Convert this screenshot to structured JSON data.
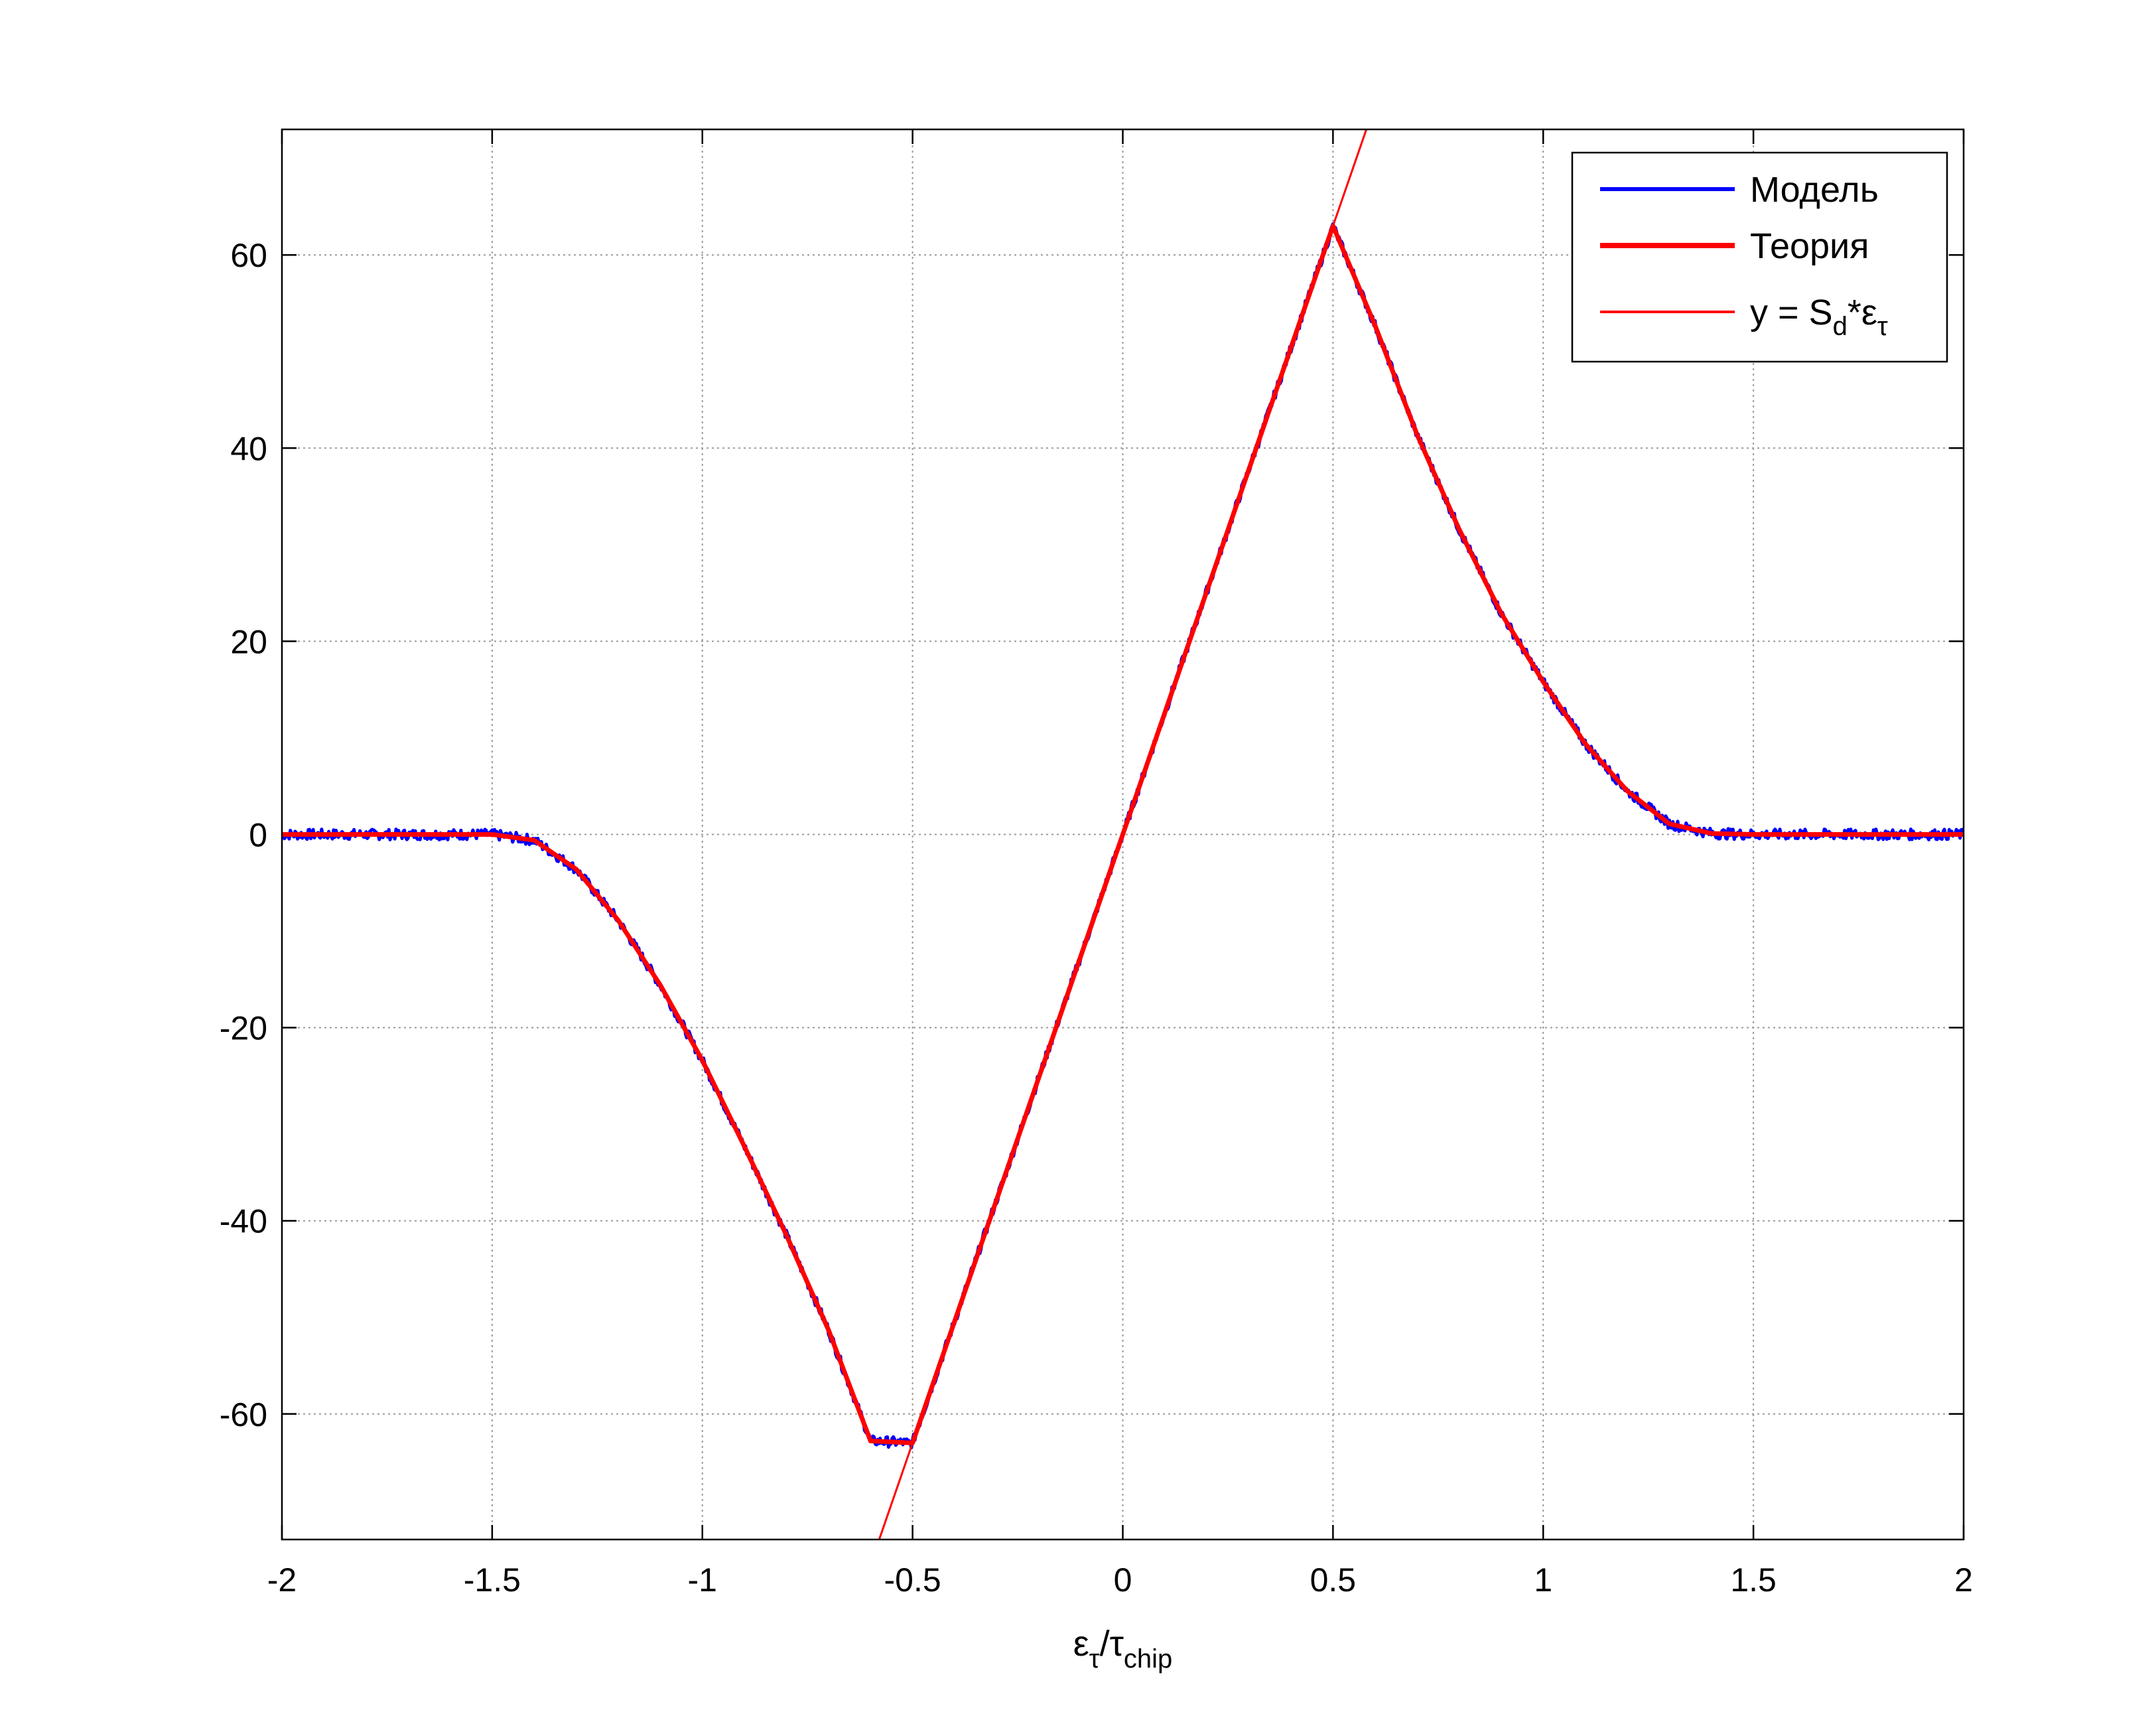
{
  "chart_data": {
    "type": "line",
    "title": "",
    "xlabel": {
      "base": "ε",
      "base_sub": "τ",
      "mid": "/τ",
      "mid_sub": "chip"
    },
    "ylabel": "",
    "xlim": [
      -2,
      2
    ],
    "ylim": [
      -73,
      73
    ],
    "grid": true,
    "x_ticks": [
      -2,
      -1.5,
      -1,
      -0.5,
      0,
      0.5,
      1,
      1.5,
      2
    ],
    "x_tick_labels": [
      "-2",
      "-1.5",
      "-1",
      "-0.5",
      "0",
      "0.5",
      "1",
      "1.5",
      "2"
    ],
    "y_ticks": [
      -60,
      -40,
      -20,
      0,
      20,
      40,
      60
    ],
    "y_tick_labels": [
      "-60",
      "-40",
      "-20",
      "0",
      "20",
      "40",
      "60"
    ],
    "legend_position": "top-right",
    "series": [
      {
        "name": "Модель",
        "color": "#0000ff",
        "style": "noisy",
        "x": [
          -2,
          -1.5,
          -1.4,
          -1.3,
          -1.2,
          -1.1,
          -1.0,
          -0.9,
          -0.8,
          -0.7,
          -0.6,
          -0.5,
          -0.25,
          0,
          0.25,
          0.5,
          0.6,
          0.7,
          0.8,
          0.9,
          1.0,
          1.1,
          1.2,
          1.3,
          1.4,
          1.5,
          2
        ],
        "y": [
          0,
          0,
          -0.6,
          -3.6,
          -8.9,
          -15.6,
          -23.4,
          -32.3,
          -41.5,
          -51.3,
          -62.8,
          -63,
          -31.5,
          0,
          31.5,
          63,
          52.7,
          41.4,
          31.6,
          22.9,
          15.8,
          9.4,
          4.5,
          1.1,
          0.1,
          0,
          0
        ]
      },
      {
        "name": "Теория",
        "color": "#ff0000",
        "style": "thick",
        "x": [
          -2,
          -1.5,
          -1.4,
          -1.3,
          -1.2,
          -1.1,
          -1.0,
          -0.9,
          -0.8,
          -0.7,
          -0.6,
          -0.5,
          -0.25,
          0,
          0.25,
          0.5,
          0.6,
          0.7,
          0.8,
          0.9,
          1.0,
          1.1,
          1.2,
          1.3,
          1.4,
          1.5,
          2
        ],
        "y": [
          0,
          0,
          -0.6,
          -3.6,
          -8.9,
          -15.6,
          -23.4,
          -32.3,
          -41.5,
          -51.3,
          -62.8,
          -63,
          -31.5,
          0,
          31.5,
          63,
          52.7,
          41.4,
          31.6,
          22.9,
          15.8,
          9.4,
          4.5,
          1.1,
          0.1,
          0,
          0
        ]
      },
      {
        "name": "y = S_d*ε_τ",
        "name_parts": {
          "a": "y = S",
          "a_sub": "d",
          "b": "*ε",
          "b_sub": "τ"
        },
        "color": "#ff0000",
        "style": "thin",
        "x": [
          -0.58,
          0.58
        ],
        "y": [
          -73.08,
          73.08
        ]
      }
    ]
  }
}
